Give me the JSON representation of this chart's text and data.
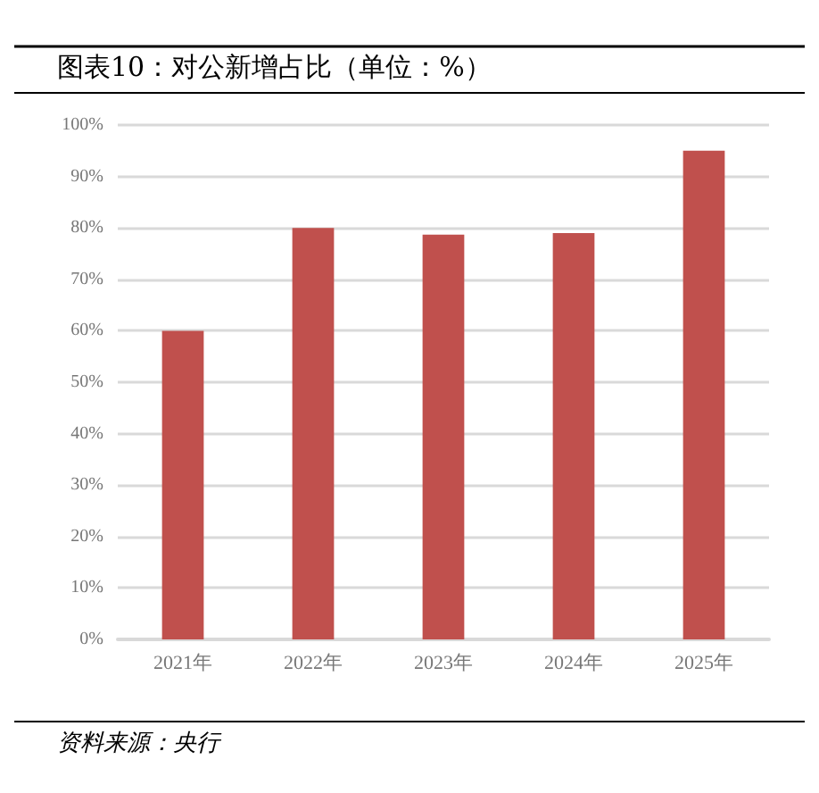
{
  "chart_data": {
    "type": "bar",
    "title": "图表10：对公新增占比（单位：%）",
    "categories": [
      "2021年",
      "2022年",
      "2023年",
      "2024年",
      "2025年"
    ],
    "values": [
      60,
      80,
      78.7,
      79,
      95
    ],
    "color": "#c0504d",
    "ylim": [
      0,
      100
    ],
    "yticks": [
      {
        "value": 0,
        "label": "0%"
      },
      {
        "value": 10,
        "label": "10%"
      },
      {
        "value": 20,
        "label": "20%"
      },
      {
        "value": 30,
        "label": "30%"
      },
      {
        "value": 40,
        "label": "40%"
      },
      {
        "value": 50,
        "label": "50%"
      },
      {
        "value": 60,
        "label": "60%"
      },
      {
        "value": 70,
        "label": "70%"
      },
      {
        "value": 80,
        "label": "80%"
      },
      {
        "value": 90,
        "label": "90%"
      },
      {
        "value": 100,
        "label": "100%"
      }
    ],
    "grid": "y",
    "annotations": [
      "资料来源：央行"
    ]
  }
}
